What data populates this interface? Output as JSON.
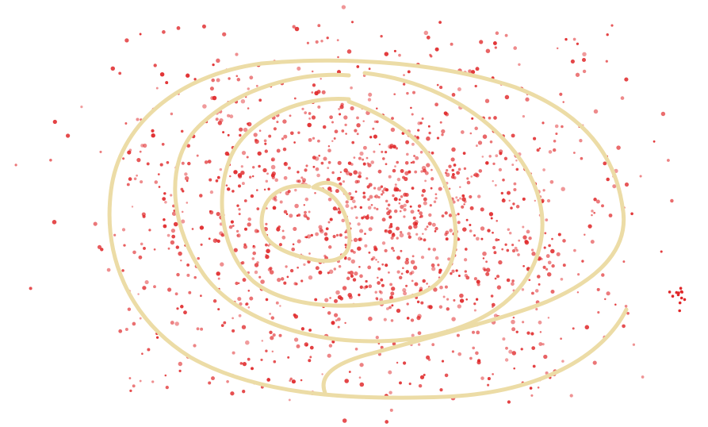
{
  "image": {
    "description_free": true,
    "colors": {
      "background": "#ffffff",
      "spiral": "#ecdca6",
      "dots": "#e0282a"
    },
    "spiral_stroke": "thick-pale-yellow",
    "dot_count": 1400
  }
}
